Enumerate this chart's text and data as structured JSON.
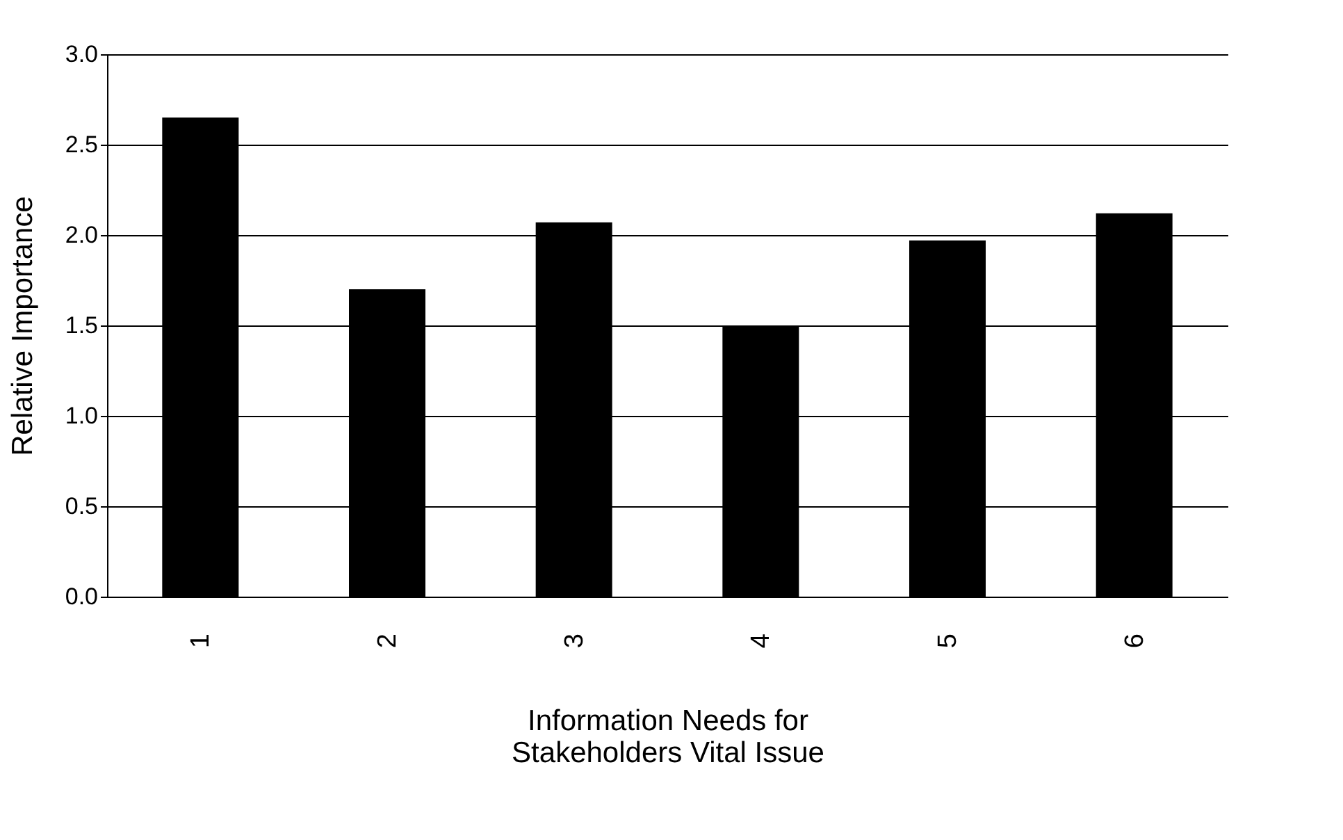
{
  "chart_data": {
    "type": "bar",
    "xlabel": "Information Needs for\nStakeholders Vital Issue",
    "ylabel": "Relative Importance",
    "categories": [
      "1",
      "2",
      "3",
      "4",
      "5",
      "6"
    ],
    "values": [
      2.65,
      1.7,
      2.07,
      1.5,
      1.97,
      2.12
    ],
    "color": "#000000",
    "ylim": [
      0,
      3
    ],
    "yticks": [
      {
        "value": 0,
        "label": "0.0"
      },
      {
        "value": 0.5,
        "label": "0.5"
      },
      {
        "value": 1,
        "label": "1.0"
      },
      {
        "value": 1.5,
        "label": "1.5"
      },
      {
        "value": 2,
        "label": "2.0"
      },
      {
        "value": 2.5,
        "label": "2.5"
      },
      {
        "value": 3,
        "label": "3.0"
      }
    ],
    "grid": "y"
  }
}
